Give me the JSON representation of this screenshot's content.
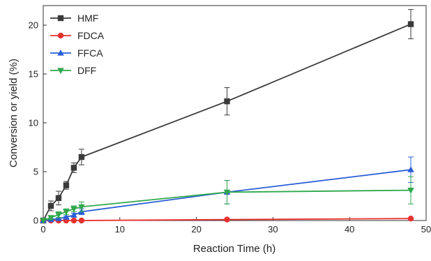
{
  "chart_data": {
    "type": "line",
    "title": "",
    "xlabel": "Reaction Time (h)",
    "ylabel": "Conversion or yield (%)",
    "xlim": [
      0,
      50
    ],
    "ylim": [
      0,
      22
    ],
    "xticks": [
      0,
      10,
      20,
      30,
      40,
      50
    ],
    "yticks": [
      0,
      5,
      10,
      15,
      20
    ],
    "grid": false,
    "legend_position": "top-left",
    "series": [
      {
        "name": "HMF",
        "color": "#3a3a3a",
        "marker": "square",
        "x": [
          0,
          1,
          2,
          3,
          4,
          5,
          24,
          48
        ],
        "y": [
          0,
          1.5,
          2.3,
          3.6,
          5.4,
          6.5,
          12.2,
          20.1
        ],
        "err": [
          0,
          0.5,
          0.7,
          0.4,
          0.5,
          0.8,
          1.4,
          1.5
        ]
      },
      {
        "name": "FDCA",
        "color": "#e8312f",
        "marker": "circle",
        "x": [
          0,
          1,
          2,
          3,
          4,
          5,
          24,
          48
        ],
        "y": [
          0,
          0,
          0,
          0,
          0,
          0,
          0.1,
          0.2
        ],
        "err": [
          0,
          0,
          0,
          0,
          0,
          0,
          0,
          0
        ]
      },
      {
        "name": "FFCA",
        "color": "#2a5fd6",
        "marker": "triangle-up",
        "x": [
          0,
          1,
          2,
          3,
          4,
          5,
          24,
          48
        ],
        "y": [
          0,
          0.1,
          0.2,
          0.35,
          0.55,
          0.9,
          2.9,
          5.2
        ],
        "err": [
          0,
          0.1,
          0.1,
          0.1,
          0.2,
          0.3,
          1.2,
          1.3
        ]
      },
      {
        "name": "DFF",
        "color": "#2ea84a",
        "marker": "triangle-down",
        "x": [
          0,
          1,
          2,
          3,
          4,
          5,
          24,
          48
        ],
        "y": [
          0,
          0.3,
          0.6,
          0.9,
          1.2,
          1.4,
          2.9,
          3.1
        ],
        "err": [
          0,
          0.2,
          0.3,
          0.3,
          0.3,
          0.5,
          1.2,
          1.4
        ]
      }
    ]
  }
}
